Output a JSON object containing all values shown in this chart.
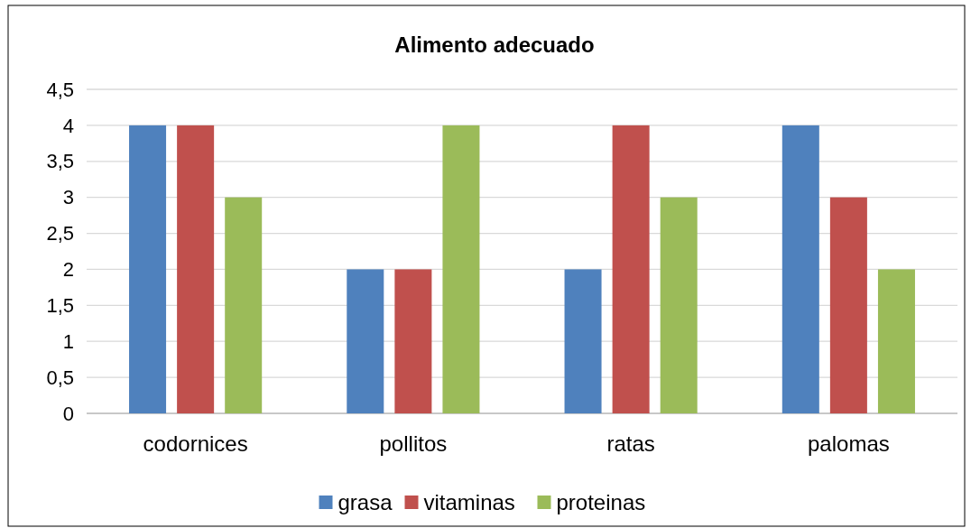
{
  "chart_data": {
    "type": "bar",
    "title": "Alimento  adecuado",
    "categories": [
      "codornices",
      "pollitos",
      "ratas",
      "palomas"
    ],
    "series": [
      {
        "name": "grasa",
        "color": "#4f81bd",
        "values": [
          4,
          2,
          2,
          4
        ]
      },
      {
        "name": "vitaminas",
        "color": "#c0504d",
        "values": [
          4,
          2,
          4,
          3
        ]
      },
      {
        "name": "proteinas",
        "color": "#9bbb59",
        "values": [
          3,
          4,
          3,
          2
        ]
      }
    ],
    "ylim": [
      0,
      4.5
    ],
    "yticks": [
      {
        "value": 0,
        "label": "0"
      },
      {
        "value": 0.5,
        "label": "0,5"
      },
      {
        "value": 1,
        "label": "1"
      },
      {
        "value": 1.5,
        "label": "1,5"
      },
      {
        "value": 2,
        "label": "2"
      },
      {
        "value": 2.5,
        "label": "2,5"
      },
      {
        "value": 3,
        "label": "3"
      },
      {
        "value": 3.5,
        "label": "3,5"
      },
      {
        "value": 4,
        "label": "4"
      },
      {
        "value": 4.5,
        "label": "4,5"
      }
    ],
    "grid": "y",
    "legend": "bottom"
  }
}
